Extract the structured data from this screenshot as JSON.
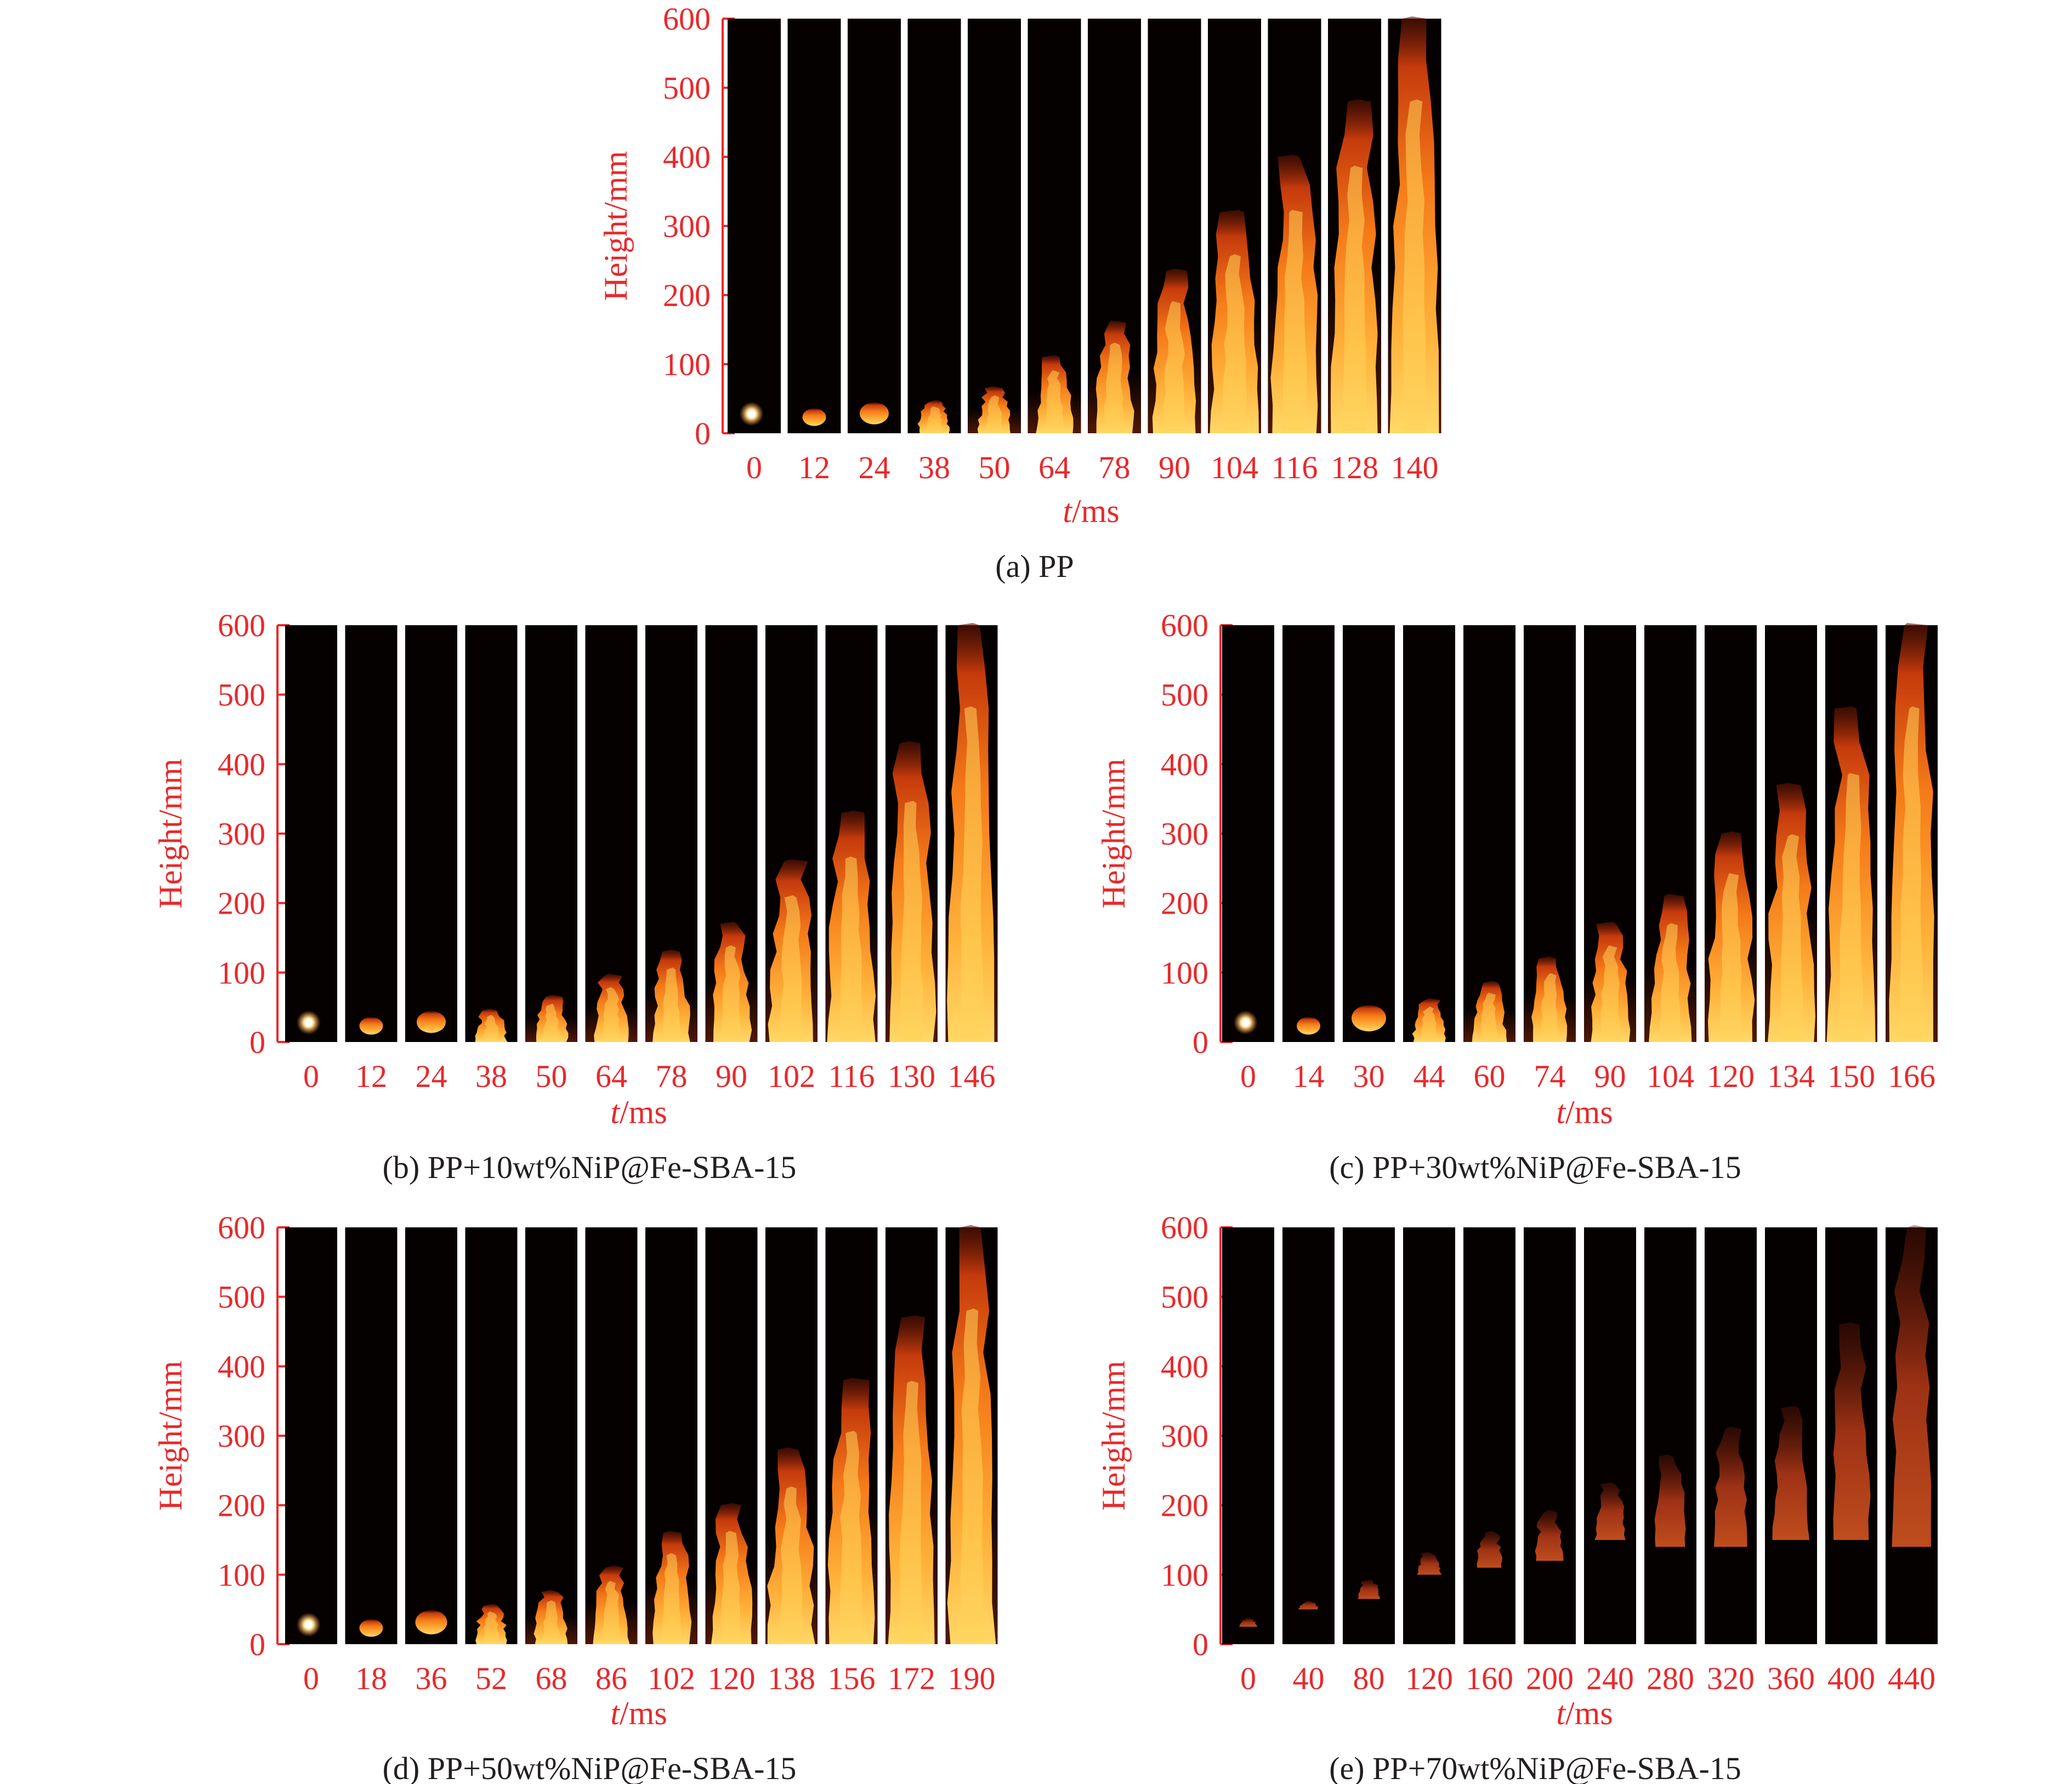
{
  "colors": {
    "axis": "#e8292b",
    "label": "#e8292b",
    "caption": "#231f20",
    "frame_bg": "#050101"
  },
  "yaxis": {
    "label": "Height/mm",
    "ticks": [
      "0",
      "100",
      "200",
      "300",
      "400",
      "500",
      "600"
    ],
    "ylim": [
      0,
      600
    ]
  },
  "xaxis_label": {
    "italic_part": "t",
    "unit_part": "/ms"
  },
  "panels": [
    {
      "id": "a",
      "caption": "(a) PP",
      "times": [
        "0",
        "12",
        "24",
        "38",
        "50",
        "64",
        "78",
        "90",
        "104",
        "116",
        "128",
        "140"
      ],
      "flame_heights_mm": [
        5,
        15,
        25,
        45,
        65,
        110,
        160,
        235,
        320,
        400,
        480,
        600
      ],
      "flame_intensity": 1.0
    },
    {
      "id": "b",
      "caption": "(b) PP+10wt%NiP@Fe-SBA-15",
      "times": [
        "0",
        "12",
        "24",
        "38",
        "50",
        "64",
        "78",
        "90",
        "102",
        "116",
        "130",
        "146"
      ],
      "flame_heights_mm": [
        5,
        15,
        25,
        45,
        65,
        95,
        130,
        170,
        260,
        330,
        430,
        600
      ],
      "flame_intensity": 1.0
    },
    {
      "id": "c",
      "caption": "(c) PP+30wt%NiP@Fe-SBA-15",
      "times": [
        "0",
        "14",
        "30",
        "44",
        "60",
        "74",
        "90",
        "104",
        "120",
        "134",
        "150",
        "166"
      ],
      "flame_heights_mm": [
        5,
        15,
        35,
        60,
        85,
        120,
        170,
        210,
        300,
        370,
        480,
        600
      ],
      "flame_intensity": 0.95
    },
    {
      "id": "d",
      "caption": "(d) PP+50wt%NiP@Fe-SBA-15",
      "times": [
        "0",
        "18",
        "36",
        "52",
        "68",
        "86",
        "102",
        "120",
        "138",
        "156",
        "172",
        "190"
      ],
      "flame_heights_mm": [
        5,
        15,
        30,
        55,
        75,
        110,
        160,
        200,
        280,
        380,
        470,
        600
      ],
      "flame_intensity": 0.85
    },
    {
      "id": "e",
      "caption": "(e) PP+70wt%NiP@Fe-SBA-15",
      "times": [
        "0",
        "40",
        "80",
        "120",
        "160",
        "200",
        "240",
        "280",
        "320",
        "360",
        "400",
        "440"
      ],
      "flame_heights_mm": [
        35,
        60,
        90,
        130,
        160,
        190,
        230,
        270,
        310,
        340,
        460,
        600
      ],
      "flame_bottoms_mm": [
        25,
        50,
        65,
        100,
        110,
        120,
        150,
        140,
        140,
        150,
        150,
        140
      ],
      "flame_intensity": 0.5
    }
  ]
}
